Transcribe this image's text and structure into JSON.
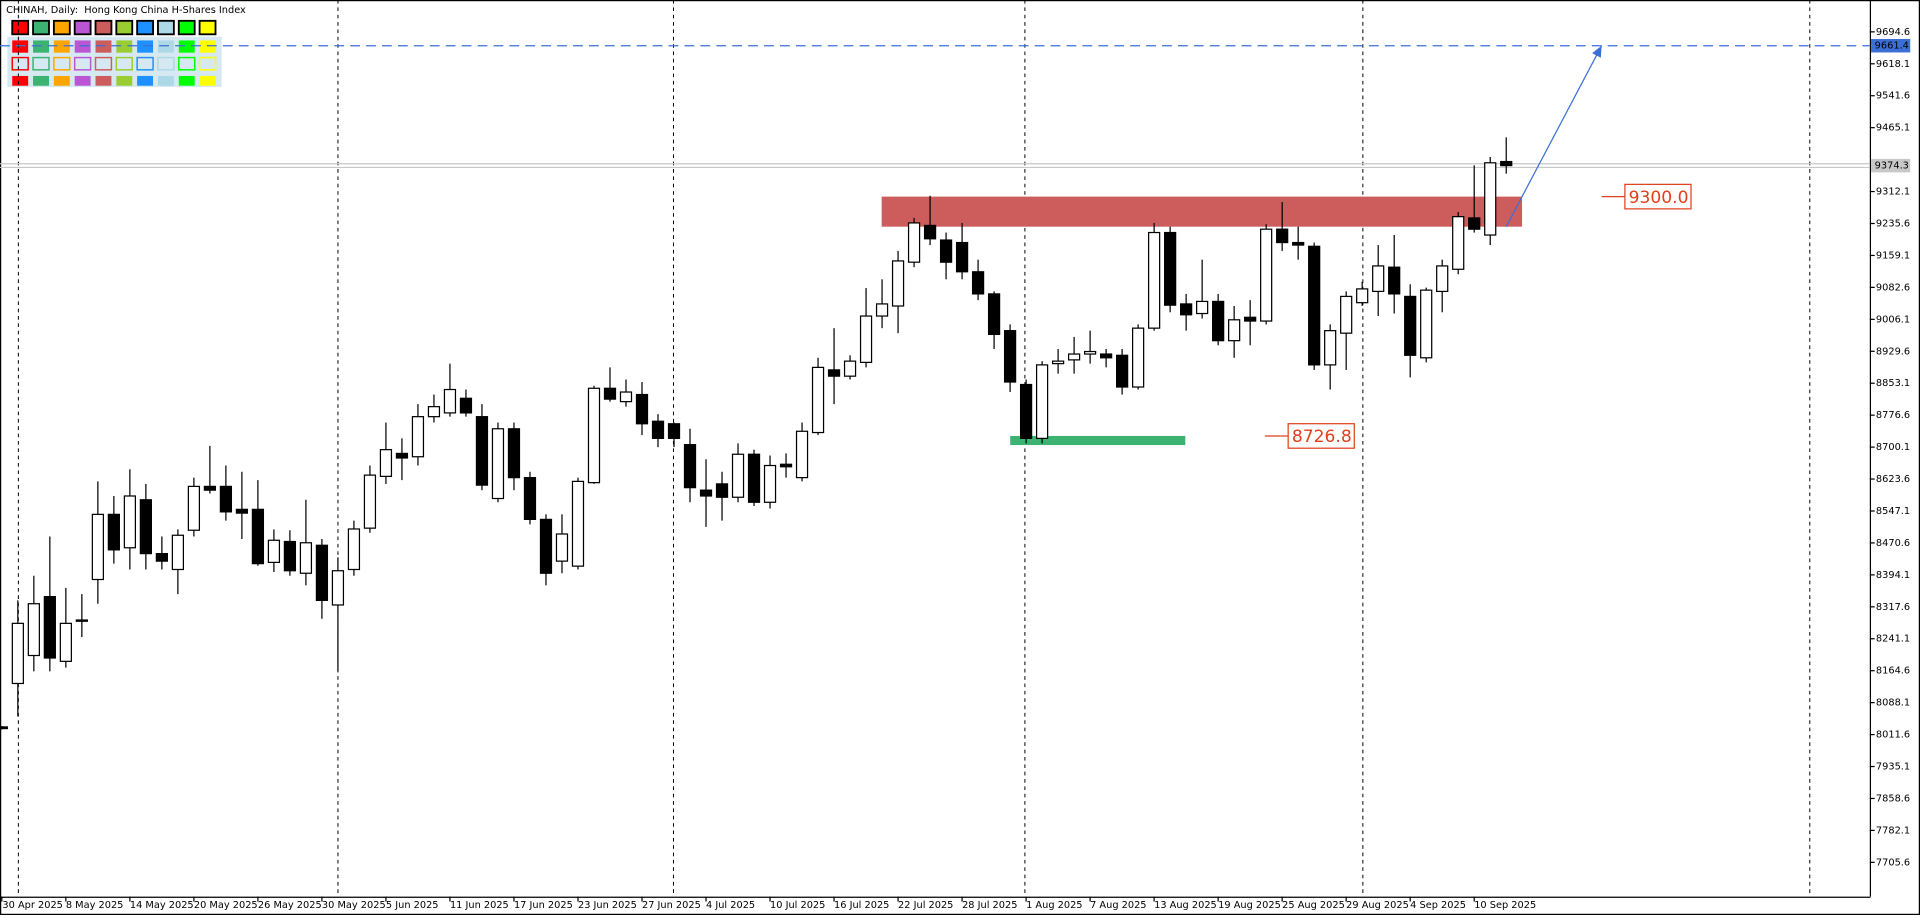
{
  "chart_data": {
    "type": "candlestick",
    "title": "CHINAH, Daily:  Hong Kong China H-Shares Index",
    "categories": [
      "30 Apr 2025",
      null,
      null,
      null,
      "8 May 2025",
      null,
      null,
      null,
      "14 May 2025",
      null,
      null,
      null,
      "20 May 2025",
      null,
      null,
      null,
      "26 May 2025",
      null,
      null,
      null,
      "30 May 2025",
      null,
      null,
      null,
      "5 Jun 2025",
      null,
      null,
      null,
      "11 Jun 2025",
      null,
      null,
      null,
      "17 Jun 2025",
      null,
      null,
      null,
      "23 Jun 2025",
      null,
      null,
      null,
      "27 Jun 2025",
      null,
      null,
      null,
      "4 Jul 2025",
      null,
      null,
      null,
      "10 Jul 2025",
      null,
      null,
      null,
      "16 Jul 2025",
      null,
      null,
      null,
      "22 Jul 2025",
      null,
      null,
      null,
      "28 Jul 2025",
      null,
      null,
      null,
      "1 Aug 2025",
      null,
      null,
      null,
      "7 Aug 2025",
      null,
      null,
      null,
      "13 Aug 2025",
      null,
      null,
      null,
      "19 Aug 2025",
      null,
      null,
      null,
      "25 Aug 2025",
      null,
      null,
      null,
      "29 Aug 2025",
      null,
      null,
      null,
      "4 Sep 2025",
      null,
      null,
      null,
      "10 Sep 2025",
      null,
      null
    ],
    "open": [
      8030,
      8134,
      8201,
      8342,
      8187,
      8283,
      8383,
      8539,
      8459,
      8574,
      8445,
      8407,
      8501,
      8606,
      8606,
      8551,
      8551,
      8424,
      8474,
      8398,
      8465,
      8322,
      8407,
      8506,
      8630,
      8685,
      8677,
      8773,
      8782,
      8817,
      8773,
      8577,
      8744,
      8627,
      8527,
      8427,
      8415,
      8615,
      8841,
      8809,
      8826,
      8762,
      8756,
      8706,
      8597,
      8612,
      8580,
      8683,
      8568,
      8659,
      8627,
      8735,
      8885,
      8870,
      8903,
      9014,
      9038,
      9143,
      9231,
      9196,
      9190,
      9120,
      9067,
      8979,
      8850,
      8721,
      8900,
      8909,
      8923,
      8923,
      8920,
      8844,
      8985,
      9214,
      9043,
      9020,
      9049,
      8955,
      9011,
      9002,
      9222,
      9190,
      9181,
      8897,
      8973,
      9046,
      9073,
      9131,
      9061,
      8914,
      9073,
      9126,
      9249,
      9208,
      9384
    ],
    "high": [
      8032,
      8333,
      8392,
      8486,
      8363,
      8348,
      8618,
      8583,
      8647,
      8612,
      8486,
      8503,
      8627,
      8703,
      8656,
      8641,
      8621,
      8503,
      8501,
      8574,
      8480,
      8436,
      8524,
      8656,
      8759,
      8721,
      8803,
      8826,
      8900,
      8838,
      8803,
      8759,
      8759,
      8641,
      8539,
      8539,
      8627,
      8847,
      8891,
      8862,
      8856,
      8779,
      8759,
      8744,
      8671,
      8641,
      8709,
      8694,
      8680,
      8685,
      8759,
      8914,
      8985,
      8920,
      9081,
      9102,
      9170,
      9249,
      9302,
      9214,
      9237,
      9149,
      9073,
      8994,
      8862,
      8906,
      8935,
      8964,
      8979,
      8935,
      8935,
      8994,
      9237,
      9228,
      9067,
      9149,
      9067,
      9038,
      9052,
      9234,
      9287,
      9228,
      9190,
      8994,
      9073,
      9096,
      9184,
      9208,
      9090,
      9082,
      9149,
      9263,
      9375,
      9395,
      9442
    ],
    "low": [
      8024,
      8055,
      8163,
      8163,
      8172,
      8245,
      8325,
      8421,
      8407,
      8407,
      8407,
      8348,
      8486,
      8589,
      8524,
      8480,
      8416,
      8401,
      8392,
      8369,
      8289,
      8163,
      8392,
      8495,
      8612,
      8621,
      8656,
      8759,
      8773,
      8773,
      8597,
      8568,
      8597,
      8515,
      8369,
      8398,
      8407,
      8612,
      8809,
      8797,
      8729,
      8700,
      8700,
      8568,
      8509,
      8524,
      8568,
      8559,
      8553,
      8627,
      8618,
      8729,
      8803,
      8862,
      8891,
      8985,
      8973,
      9131,
      9184,
      9102,
      9102,
      9052,
      8935,
      8832,
      8709,
      8709,
      8876,
      8876,
      8900,
      8891,
      8826,
      8838,
      8979,
      9023,
      8979,
      9008,
      8944,
      8914,
      8944,
      8994,
      9170,
      9149,
      8885,
      8838,
      8885,
      9038,
      9014,
      9020,
      8867,
      8903,
      9023,
      9114,
      9214,
      9184,
      9355
    ],
    "close": [
      8026,
      8278,
      8325,
      8195,
      8278,
      8286,
      8539,
      8454,
      8583,
      8445,
      8427,
      8489,
      8606,
      8597,
      8545,
      8542,
      8421,
      8477,
      8404,
      8471,
      8333,
      8404,
      8504,
      8633,
      8694,
      8674,
      8773,
      8797,
      8838,
      8782,
      8609,
      8744,
      8627,
      8527,
      8398,
      8492,
      8618,
      8841,
      8815,
      8832,
      8756,
      8721,
      8721,
      8603,
      8583,
      8580,
      8683,
      8568,
      8656,
      8653,
      8738,
      8891,
      8870,
      8906,
      9014,
      9043,
      9146,
      9237,
      9199,
      9143,
      9120,
      9067,
      8970,
      8856,
      8721,
      8897,
      8906,
      8923,
      8929,
      8914,
      8844,
      8985,
      9214,
      9040,
      9017,
      9049,
      8955,
      9005,
      9002,
      9222,
      9190,
      9184,
      8897,
      8979,
      9061,
      9079,
      9134,
      9067,
      8920,
      9076,
      9134,
      9252,
      9222,
      9381,
      9374.3
    ],
    "up_color": "#ffffff",
    "down_color": "#000000",
    "ylim": [
      7623.5,
      9770.9
    ],
    "yticks": [
      9694.6,
      9618.1,
      9541.6,
      9465.1,
      9312.1,
      9235.6,
      9159.1,
      9082.6,
      9006.1,
      8929.6,
      8853.1,
      8776.6,
      8700.1,
      8623.6,
      8547.1,
      8470.6,
      8394.1,
      8317.6,
      8241.1,
      8164.6,
      8088.1,
      8011.6,
      7935.1,
      7858.6,
      7782.1,
      7705.6
    ],
    "target_line": {
      "value": 9661.4,
      "color": "#3b6fd6"
    },
    "zones": [
      {
        "value": 9300,
        "label": "9300.0",
        "low": 9228,
        "color": "#cd5c5c"
      },
      {
        "value": 8726.8,
        "low": 8705,
        "color": "#3cb371"
      }
    ]
  }
}
